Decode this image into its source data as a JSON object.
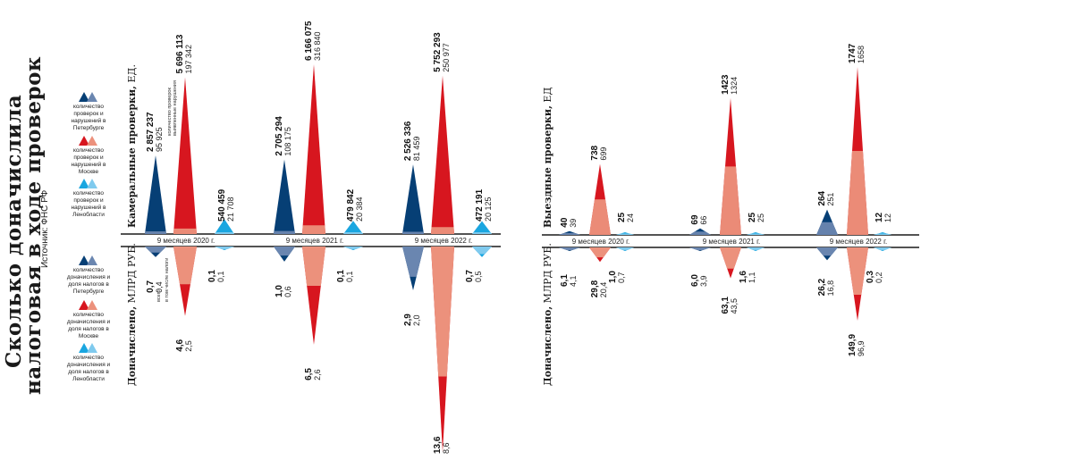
{
  "title": {
    "line1": "Сколько доначислила",
    "line2": "налоговая в ходе проверок"
  },
  "source": "Источник: ФНС РФ",
  "colors": {
    "spb_dark": "#063f75",
    "spb_light": "#6a86b0",
    "msk_dark": "#d7161f",
    "msk_light": "#ec917c",
    "lo_dark": "#1aa6e0",
    "lo_light": "#7fcaee",
    "axis": "#1a1a1a"
  },
  "legend_top": [
    {
      "label": "количество проверок и нарушений в Петербурге",
      "icon": "triangle-up-blue-icon"
    },
    {
      "label": "количество проверок и нарушений в Москве",
      "icon": "triangle-up-red-icon"
    },
    {
      "label": "количество проверок и нарушений в Ленобласти",
      "icon": "triangle-up-lightblue-icon"
    }
  ],
  "legend_bottom": [
    {
      "label": "количество доначисления и доля налогов в Петербурге",
      "icon": "triangle-up-blue-icon"
    },
    {
      "label": "количество доначисления и доля налогов в Москве",
      "icon": "triangle-up-red-icon"
    },
    {
      "label": "количество доначисления и доля налогов в Ленобласти",
      "icon": "triangle-up-lightblue-icon"
    }
  ],
  "section_labels": {
    "cameral_bold": "Камеральные проверки,",
    "cameral_unit": " ЕД.",
    "field_bold": "Выездные проверки,",
    "field_unit": " ЕД",
    "additional_bold": "Доначислено,",
    "additional_unit": " МЛРД РУБ."
  },
  "annotations": {
    "checks_count": "количество проверок",
    "violations": "выявленные нарушения",
    "total": "всего",
    "incl_taxes": "в том числе налоги"
  },
  "chart_data": [
    {
      "name": "Камеральные проверки",
      "type": "area",
      "unit_top": "ЕД.",
      "unit_bottom": "МЛРД РУБ.",
      "periods": [
        "9 месяцев 2020 г.",
        "9 месяцев 2021 г.",
        "9 месяцев 2022 г."
      ],
      "regions": [
        "Петербург",
        "Москва",
        "Ленобласть"
      ],
      "checks": [
        [
          {
            "total": "2 857 237",
            "part": "95 925"
          },
          {
            "total": "5 696 113",
            "part": "197 342"
          },
          {
            "total": "540 459",
            "part": "21 708"
          }
        ],
        [
          {
            "total": "2 705 294",
            "part": "108 175"
          },
          {
            "total": "6 166 075",
            "part": "316 840"
          },
          {
            "total": "479 842",
            "part": "20 384"
          }
        ],
        [
          {
            "total": "2 526 336",
            "part": "81 459"
          },
          {
            "total": "5 752 293",
            "part": "250 977"
          },
          {
            "total": "472 191",
            "part": "20 125"
          }
        ]
      ],
      "additional": [
        [
          {
            "total": "0,7",
            "part": "0,4"
          },
          {
            "total": "4,6",
            "part": "2,5"
          },
          {
            "total": "0,1",
            "part": "0,1"
          }
        ],
        [
          {
            "total": "1,0",
            "part": "0,6"
          },
          {
            "total": "6,5",
            "part": "2,6"
          },
          {
            "total": "0,1",
            "part": "0,1"
          }
        ],
        [
          {
            "total": "2,9",
            "part": "2,0"
          },
          {
            "total": "13,6",
            "part": "8,6"
          },
          {
            "total": "0,7",
            "part": "0,5"
          }
        ]
      ]
    },
    {
      "name": "Выездные проверки",
      "type": "area",
      "unit_top": "ЕД",
      "unit_bottom": "МЛРД РУБ.",
      "periods": [
        "9 месяцев 2020 г.",
        "9 месяцев 2021 г.",
        "9 месяцев 2022 г."
      ],
      "regions": [
        "Петербург",
        "Москва",
        "Ленобласть"
      ],
      "checks": [
        [
          {
            "total": "40",
            "part": "39"
          },
          {
            "total": "738",
            "part": "699"
          },
          {
            "total": "25",
            "part": "24"
          }
        ],
        [
          {
            "total": "69",
            "part": "66"
          },
          {
            "total": "1423",
            "part": "1324"
          },
          {
            "total": "25",
            "part": "25"
          }
        ],
        [
          {
            "total": "264",
            "part": "251"
          },
          {
            "total": "1747",
            "part": "1658"
          },
          {
            "total": "12",
            "part": "12"
          }
        ]
      ],
      "additional": [
        [
          {
            "total": "6,1",
            "part": "4,1"
          },
          {
            "total": "29,8",
            "part": "20,4"
          },
          {
            "total": "1,0",
            "part": "0,7"
          }
        ],
        [
          {
            "total": "6,0",
            "part": "3,9"
          },
          {
            "total": "63,1",
            "part": "43,5"
          },
          {
            "total": "1,6",
            "part": "1,1"
          }
        ],
        [
          {
            "total": "26,2",
            "part": "16,8"
          },
          {
            "total": "149,9",
            "part": "96,9"
          },
          {
            "total": "0,3",
            "part": "0,2"
          }
        ]
      ]
    }
  ]
}
